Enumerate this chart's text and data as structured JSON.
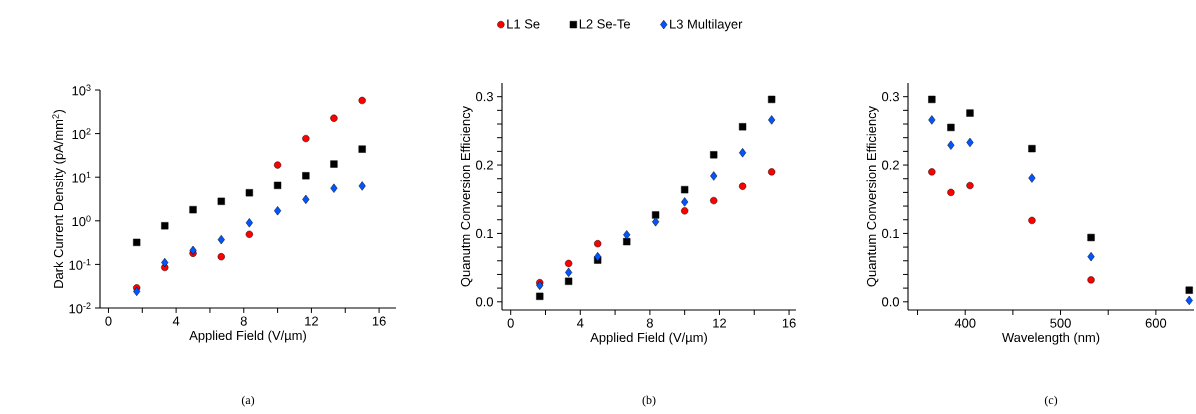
{
  "chart_data": [
    {
      "type": "scatter",
      "xlabel": "Applied Field (V/µm)",
      "ylabel": "Dark Current Density (pA/mm$^{2}$)",
      "log": "y",
      "legend": "top",
      "annotations": [
        "(a)"
      ],
      "x": [
        1.67,
        3.33,
        5,
        6.67,
        8.33,
        10,
        11.67,
        13.33,
        15
      ],
      "xlim": [
        -0.5,
        17
      ],
      "xticks": [
        0,
        {
          "value": 2,
          "label": null
        },
        4,
        {
          "value": 6,
          "label": null
        },
        8,
        {
          "value": 10,
          "label": null
        },
        12,
        {
          "value": 14,
          "label": null
        },
        16
      ],
      "ylim": [
        0.01,
        1000
      ],
      "yticks": [
        {
          "value": 0.01,
          "label": "10$^{-2}$"
        },
        {
          "value": 0.1,
          "label": "10$^{-1}$"
        },
        {
          "value": 1,
          "label": "10$^{0}$"
        },
        {
          "value": 10,
          "label": "10$^{1}$"
        },
        {
          "value": 100,
          "label": "10$^{2}$"
        },
        {
          "value": 1000,
          "label": "10$^{3}$"
        }
      ],
      "series": [
        {
          "name": "L1 Se",
          "color": "#ff0000",
          "marker": "circle",
          "values": [
            0.029,
            0.085,
            0.18,
            0.15,
            0.49,
            19,
            77,
            225,
            575
          ]
        },
        {
          "name": "L2 Se-Te",
          "color": "#000000",
          "marker": "square",
          "values": [
            0.32,
            0.77,
            1.8,
            2.8,
            4.4,
            6.5,
            10.8,
            20,
            44
          ]
        },
        {
          "name": "L3 Multilayer",
          "color": "#0055ff",
          "marker": "diamond",
          "values": [
            0.024,
            0.11,
            0.21,
            0.37,
            0.9,
            1.7,
            3.1,
            5.6,
            6.3
          ]
        }
      ]
    },
    {
      "type": "scatter",
      "xlabel": "Applied Field (V/µm)",
      "ylabel": "Quanutm Conversion Efficiency",
      "annotations": [
        "(b)"
      ],
      "x": [
        1.67,
        3.33,
        5,
        6.67,
        8.33,
        10,
        11.67,
        13.33,
        15
      ],
      "xlim": [
        -0.5,
        16.4
      ],
      "xticks": [
        0,
        {
          "value": 2,
          "label": null
        },
        4,
        {
          "value": 6,
          "label": null
        },
        8,
        {
          "value": 10,
          "label": null
        },
        12,
        {
          "value": 14,
          "label": null
        },
        16
      ],
      "ylim": [
        -0.012,
        0.32
      ],
      "yticks": [
        {
          "value": 0,
          "label": "0.0"
        },
        {
          "value": 0.02,
          "label": null
        },
        {
          "value": 0.04,
          "label": null
        },
        {
          "value": 0.06,
          "label": null
        },
        {
          "value": 0.08,
          "label": null
        },
        0.1,
        {
          "value": 0.12,
          "label": null
        },
        {
          "value": 0.14,
          "label": null
        },
        {
          "value": 0.16,
          "label": null
        },
        {
          "value": 0.18,
          "label": null
        },
        0.2,
        {
          "value": 0.22,
          "label": null
        },
        {
          "value": 0.24,
          "label": null
        },
        {
          "value": 0.26,
          "label": null
        },
        {
          "value": 0.28,
          "label": null
        },
        0.3
      ],
      "series": [
        {
          "color": "#ff0000",
          "marker": "circle",
          "values": [
            0.028,
            0.056,
            0.085,
            null,
            null,
            0.133,
            0.148,
            0.169,
            0.19
          ]
        },
        {
          "color": "#000000",
          "marker": "square",
          "values": [
            0.008,
            0.03,
            0.061,
            0.088,
            0.127,
            0.164,
            0.215,
            0.256,
            0.296
          ]
        },
        {
          "color": "#0055ff",
          "marker": "diamond",
          "values": [
            0.024,
            0.043,
            0.066,
            0.098,
            0.117,
            0.146,
            0.184,
            0.218,
            0.266
          ]
        }
      ]
    },
    {
      "type": "scatter",
      "xlabel": "Wavelength (nm)",
      "ylabel": "Quantum Conversion Efficiency",
      "annotations": [
        "(c)"
      ],
      "x": [
        365,
        385,
        405,
        470,
        532,
        635
      ],
      "xlim": [
        340,
        640
      ],
      "xticks": [
        {
          "value": 350,
          "label": null
        },
        400,
        {
          "value": 450,
          "label": null
        },
        500,
        {
          "value": 550,
          "label": null
        },
        600
      ],
      "ylim": [
        -0.012,
        0.32
      ],
      "yticks": [
        {
          "value": 0,
          "label": "0.0"
        },
        {
          "value": 0.02,
          "label": null
        },
        {
          "value": 0.04,
          "label": null
        },
        {
          "value": 0.06,
          "label": null
        },
        {
          "value": 0.08,
          "label": null
        },
        0.1,
        {
          "value": 0.12,
          "label": null
        },
        {
          "value": 0.14,
          "label": null
        },
        {
          "value": 0.16,
          "label": null
        },
        {
          "value": 0.18,
          "label": null
        },
        0.2,
        {
          "value": 0.22,
          "label": null
        },
        {
          "value": 0.24,
          "label": null
        },
        {
          "value": 0.26,
          "label": null
        },
        {
          "value": 0.28,
          "label": null
        },
        0.3
      ],
      "series": [
        {
          "color": "#ff0000",
          "marker": "circle",
          "values": [
            0.19,
            0.16,
            0.17,
            0.119,
            0.032,
            null
          ]
        },
        {
          "color": "#000000",
          "marker": "square",
          "values": [
            0.296,
            0.255,
            0.276,
            0.224,
            0.094,
            0.017
          ]
        },
        {
          "color": "#0055ff",
          "marker": "diamond",
          "values": [
            0.266,
            0.229,
            0.233,
            0.181,
            0.066,
            0.002
          ]
        }
      ]
    }
  ]
}
